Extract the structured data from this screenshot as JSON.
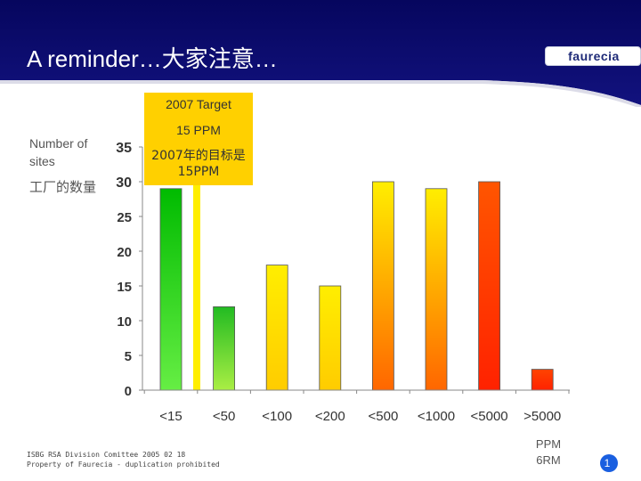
{
  "slide": {
    "title": "A reminder…大家注意…",
    "logo_text": "faurecia",
    "colors": {
      "header_navy": "#0a0a6e",
      "header_wave": "#ffffff",
      "bar_green": "#22bb22",
      "bar_yellow": "#ffee00",
      "bar_orange": "#ff9900",
      "bar_red": "#ff3300",
      "target_line": "#ffee00",
      "callout_bg": "#ffd000"
    }
  },
  "y_axis_title": {
    "en": "Number of sites",
    "cn": "工厂的数量"
  },
  "callout": {
    "line1": "2007 Target",
    "line2": "15 PPM",
    "cn": "2007年的目标是15PPM"
  },
  "unit_label": {
    "line1": "PPM",
    "line2": "6RM"
  },
  "footer": {
    "line1": "ISBG RSA Division Comittee 2005 02 18",
    "line2": "Property of Faurecia - duplication prohibited"
  },
  "page_badge": "1",
  "chart_data": {
    "type": "bar",
    "categories": [
      "<15",
      "<50",
      "<100",
      "<200",
      "<500",
      "<1000",
      "<5000",
      ">5000"
    ],
    "values": [
      29,
      12,
      18,
      15,
      30,
      29,
      30,
      3
    ],
    "ylim": [
      0,
      35
    ],
    "yticks": [
      0,
      5,
      10,
      15,
      20,
      25,
      30,
      35
    ],
    "grid": false,
    "colors": [
      [
        "#00bb00",
        "#66ee44"
      ],
      [
        "#22bb22",
        "#aaee44"
      ],
      [
        "#ffee00",
        "#ffcc00"
      ],
      [
        "#ffee00",
        "#ffcc00"
      ],
      [
        "#ffee00",
        "#ff6600"
      ],
      [
        "#ffee00",
        "#ff6600"
      ],
      [
        "#ff5500",
        "#ff2200"
      ],
      [
        "#ff4400",
        "#ff2200"
      ]
    ],
    "target_line": {
      "label": "15 PPM",
      "category_after": "<15"
    }
  }
}
